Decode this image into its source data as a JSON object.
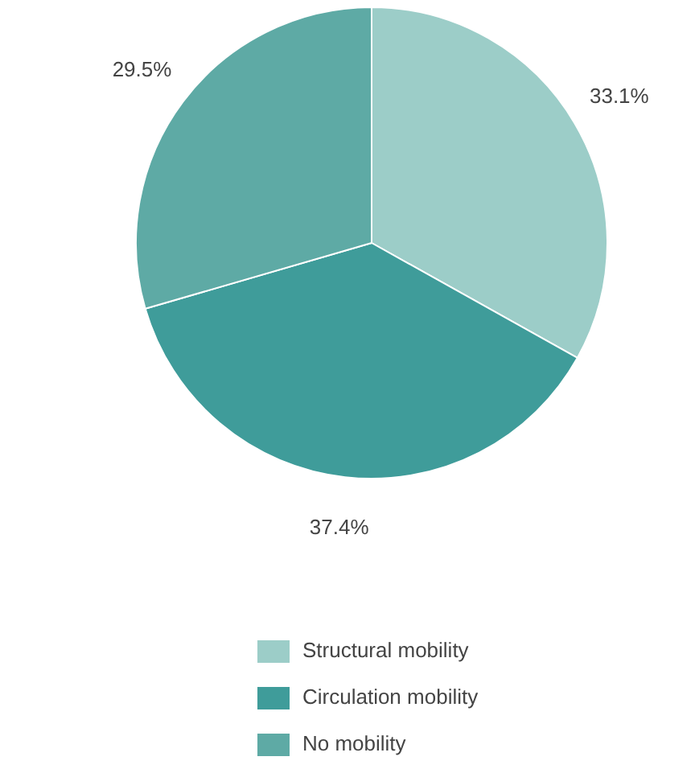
{
  "chart_data": {
    "type": "pie",
    "categories": [
      "Structural mobility",
      "Circulation mobility",
      "No mobility"
    ],
    "values": [
      33.1,
      37.4,
      29.5
    ],
    "value_labels": [
      "33.1%",
      "37.4%",
      "29.5%"
    ],
    "colors": [
      "#9ccdc8",
      "#3f9c9a",
      "#5eaaa5"
    ],
    "legend": "bottom"
  }
}
